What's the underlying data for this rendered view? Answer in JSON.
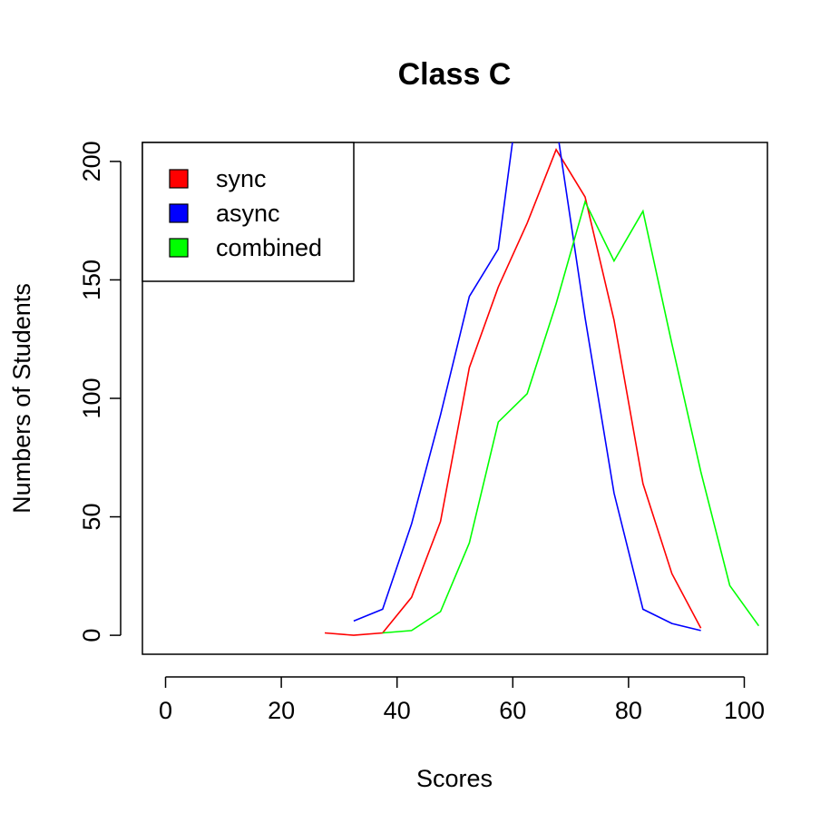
{
  "chart_data": {
    "type": "line",
    "title": "Class C",
    "xlabel": "Scores",
    "ylabel": "Numbers of Students",
    "xlim": [
      -4,
      104
    ],
    "ylim": [
      -8,
      208
    ],
    "xticks": [
      0,
      20,
      40,
      60,
      80,
      100
    ],
    "yticks": [
      0,
      50,
      100,
      150,
      200
    ],
    "grid": false,
    "legend_position": "top-left",
    "series": [
      {
        "name": "sync",
        "color": "#ff0000",
        "x": [
          27.5,
          32.5,
          37.5,
          42.5,
          47.5,
          52.5,
          57.5,
          62.5,
          67.5,
          72.5,
          77.5,
          82.5,
          87.5,
          92.5
        ],
        "y": [
          1,
          0,
          1,
          16,
          48,
          113,
          147,
          174,
          205,
          185,
          133,
          64,
          26,
          3
        ]
      },
      {
        "name": "async",
        "color": "#0000ff",
        "x": [
          32.5,
          37.5,
          42.5,
          47.5,
          52.5,
          57.5,
          62.5,
          67.5,
          72.5,
          77.5,
          82.5,
          87.5,
          92.5
        ],
        "y": [
          6,
          11,
          47,
          93,
          143,
          163,
          255,
          216,
          134,
          60,
          11,
          5,
          2
        ]
      },
      {
        "name": "combined",
        "color": "#00ff00",
        "x": [
          37.5,
          42.5,
          47.5,
          52.5,
          57.5,
          62.5,
          67.5,
          72.5,
          77.5,
          82.5,
          87.5,
          92.5,
          97.5,
          102.5
        ],
        "y": [
          1,
          2,
          10,
          39,
          90,
          102,
          140,
          183,
          158,
          179,
          123,
          69,
          21,
          4
        ]
      }
    ]
  }
}
